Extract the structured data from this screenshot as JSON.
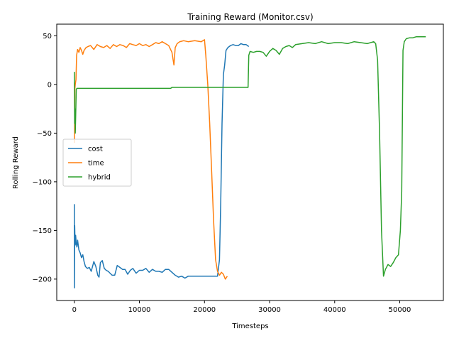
{
  "chart_data": {
    "type": "line",
    "title": "Training Reward (Monitor.csv)",
    "xlabel": "Timesteps",
    "ylabel": "Rolling Reward",
    "xlim": [
      -2700,
      56700
    ],
    "ylim": [
      -222,
      62
    ],
    "xticks": [
      0,
      10000,
      20000,
      30000,
      40000,
      50000
    ],
    "yticks": [
      -200,
      -150,
      -100,
      -50,
      0,
      50
    ],
    "legend_position": "center-left",
    "grid": false,
    "series": [
      {
        "name": "cost",
        "color": "#1f77b4",
        "x": [
          0,
          30,
          60,
          100,
          150,
          200,
          300,
          400,
          500,
          700,
          900,
          1100,
          1300,
          1500,
          1700,
          2000,
          2300,
          2600,
          3000,
          3300,
          3600,
          3800,
          4000,
          4300,
          4600,
          4900,
          5200,
          5500,
          5800,
          6200,
          6600,
          7000,
          7400,
          7800,
          8200,
          8600,
          9000,
          9500,
          10000,
          10500,
          11000,
          11500,
          12000,
          12500,
          13000,
          13500,
          14000,
          14500,
          15000,
          15500,
          16000,
          16500,
          17000,
          17500,
          18000,
          19000,
          20000,
          21000,
          22000,
          22300,
          22500,
          22700,
          22900,
          23100,
          23300,
          23600,
          24000,
          24400,
          24800,
          25200,
          25600,
          26000,
          26400,
          26800
        ],
        "y": [
          -123,
          -209,
          -145,
          -160,
          -165,
          -155,
          -163,
          -167,
          -160,
          -170,
          -173,
          -178,
          -175,
          -182,
          -187,
          -189,
          -188,
          -192,
          -182,
          -187,
          -196,
          -198,
          -183,
          -181,
          -189,
          -191,
          -192,
          -194,
          -196,
          -196,
          -186,
          -188,
          -190,
          -190,
          -195,
          -191,
          -189,
          -194,
          -191,
          -191,
          -189,
          -193,
          -190,
          -192,
          -192,
          -193,
          -190,
          -190,
          -193,
          -196,
          -198,
          -197,
          -199,
          -197,
          -197,
          -197,
          -197,
          -197,
          -197,
          -180,
          -120,
          -40,
          10,
          20,
          35,
          38,
          40,
          41,
          40,
          40,
          42,
          41,
          41,
          39
        ]
      },
      {
        "name": "time",
        "color": "#ff7f0e",
        "x": [
          0,
          40,
          80,
          150,
          250,
          350,
          500,
          700,
          900,
          1100,
          1300,
          1500,
          1800,
          2100,
          2500,
          3000,
          3500,
          4000,
          4500,
          5000,
          5500,
          6000,
          6500,
          7000,
          7500,
          8000,
          8500,
          9000,
          9500,
          10000,
          10500,
          11000,
          11500,
          12000,
          12500,
          13000,
          13500,
          14000,
          14500,
          15000,
          15300,
          15500,
          15800,
          16200,
          16800,
          17500,
          18500,
          19500,
          20000,
          20200,
          20500,
          20800,
          21100,
          21400,
          21700,
          22000,
          22300,
          22600,
          22900,
          23200,
          23500
        ],
        "y": [
          -60,
          -50,
          -5,
          0,
          5,
          30,
          36,
          33,
          38,
          35,
          31,
          35,
          38,
          39,
          40,
          36,
          41,
          39,
          38,
          40,
          37,
          41,
          39,
          41,
          40,
          38,
          42,
          41,
          40,
          42,
          40,
          41,
          39,
          41,
          43,
          42,
          44,
          42,
          40,
          33,
          20,
          38,
          42,
          44,
          45,
          44,
          45,
          44,
          46,
          30,
          0,
          -40,
          -90,
          -140,
          -180,
          -192,
          -196,
          -193,
          -195,
          -200,
          -197
        ]
      },
      {
        "name": "hybrid",
        "color": "#2ca02c",
        "x": [
          0,
          50,
          100,
          150,
          200,
          300,
          400,
          500,
          1000,
          3000,
          6000,
          9000,
          12000,
          14800,
          15000,
          18000,
          21000,
          24000,
          26700,
          26800,
          27000,
          27500,
          28000,
          28500,
          29000,
          29500,
          30000,
          30500,
          31000,
          31500,
          32000,
          32500,
          33000,
          33500,
          34000,
          35000,
          36000,
          37000,
          38000,
          39000,
          40000,
          41000,
          42000,
          43000,
          44000,
          45000,
          46000,
          46300,
          46600,
          46900,
          47200,
          47500,
          47800,
          48200,
          48600,
          49000,
          49400,
          49800,
          50100,
          50300,
          50500,
          50700,
          51000,
          51500,
          52000,
          52500,
          53000,
          53500,
          54000
        ],
        "y": [
          13,
          -40,
          -25,
          -50,
          -35,
          -5,
          -4,
          -4,
          -4,
          -4,
          -4,
          -4,
          -4,
          -4,
          -3,
          -3,
          -3,
          -3,
          -3,
          30,
          34,
          33,
          34,
          34,
          33,
          29,
          34,
          37,
          35,
          31,
          37,
          39,
          40,
          38,
          41,
          42,
          43,
          42,
          44,
          42,
          43,
          43,
          42,
          44,
          43,
          42,
          44,
          42,
          25,
          -50,
          -150,
          -197,
          -190,
          -185,
          -187,
          -183,
          -178,
          -175,
          -150,
          -110,
          35,
          44,
          47,
          48,
          48,
          49,
          49,
          49,
          49
        ]
      }
    ]
  }
}
